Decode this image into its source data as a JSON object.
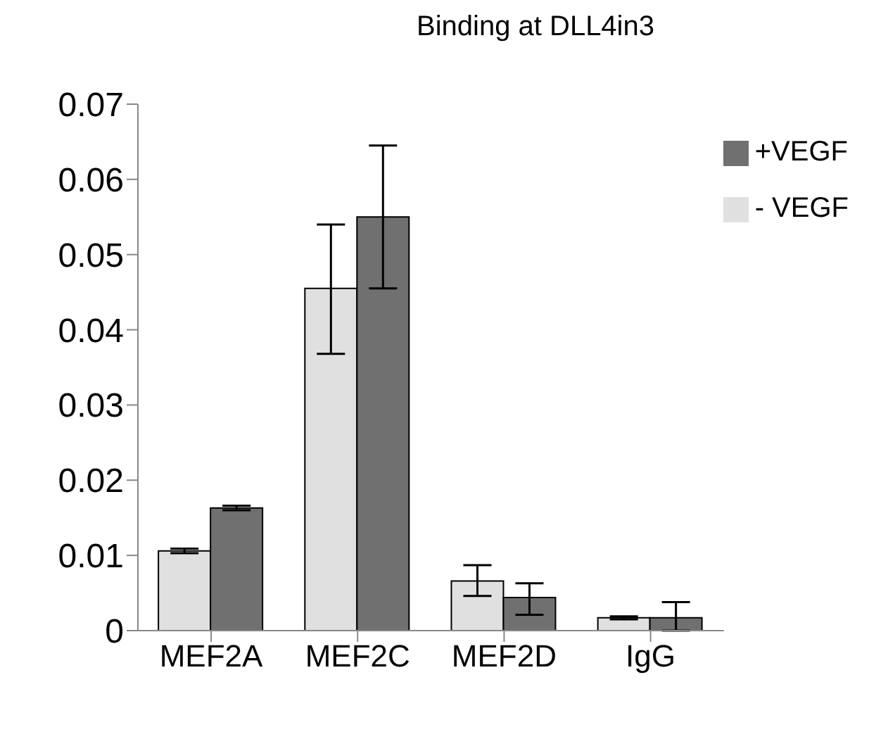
{
  "chart_data": {
    "type": "bar",
    "title": "Binding at DLL4in3",
    "categories": [
      "MEF2A",
      "MEF2C",
      "MEF2D",
      "IgG"
    ],
    "series": [
      {
        "name": "- VEGF",
        "color": "#e0e0e0",
        "values": [
          0.0106,
          0.0455,
          0.0066,
          0.0017
        ],
        "errors": [
          0.0003,
          [
            0.0368,
            0.054
          ],
          [
            0.0046,
            0.0087
          ],
          0.0002
        ]
      },
      {
        "name": "+VEGF",
        "color": "#707070",
        "values": [
          0.0163,
          0.055,
          0.0044,
          0.0017
        ],
        "errors": [
          0.0003,
          [
            0.0455,
            0.0645
          ],
          [
            0.0021,
            0.0063
          ],
          [
            0,
            0.0038
          ]
        ]
      }
    ],
    "ylim": [
      0,
      0.07
    ],
    "yticks": [
      0,
      0.01,
      0.02,
      0.03,
      0.04,
      0.05,
      0.06,
      0.07
    ],
    "grid": false,
    "legend": "top right"
  }
}
